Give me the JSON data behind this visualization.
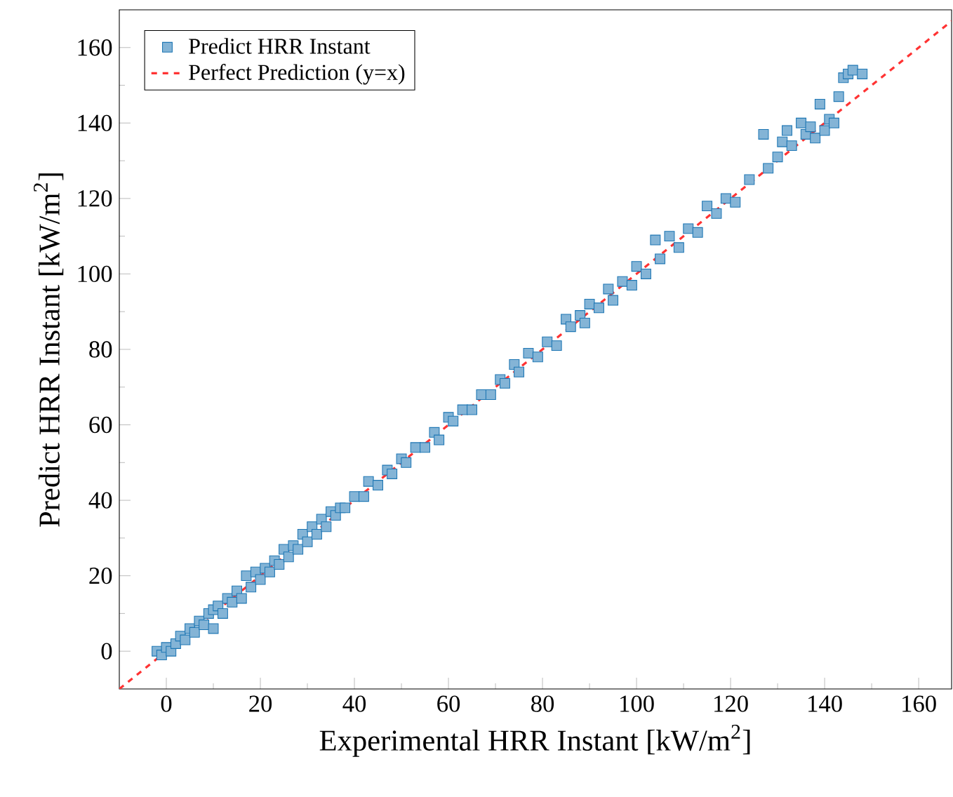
{
  "chart_data": {
    "type": "scatter",
    "xlabel": "Experimental HRR Instant [kW/m$^{2}$]",
    "ylabel": "Predict HRR Instant [kW/m$^{2}$]",
    "xlim": [
      -10,
      167
    ],
    "ylim": [
      -10,
      170
    ],
    "xticks": [
      0,
      20,
      40,
      60,
      80,
      100,
      120,
      140,
      160
    ],
    "yticks": [
      0,
      20,
      40,
      60,
      80,
      100,
      120,
      140,
      160
    ],
    "grid": false,
    "legend": "top left",
    "series": [
      {
        "name": "Predict HRR Instant",
        "color": "#1f77b4",
        "marker": "square",
        "x": [
          -2,
          -1,
          0,
          1,
          2,
          3,
          4,
          5,
          6,
          7,
          8,
          9,
          10,
          10,
          11,
          12,
          13,
          14,
          15,
          16,
          17,
          18,
          19,
          20,
          21,
          22,
          23,
          24,
          25,
          26,
          27,
          28,
          29,
          30,
          31,
          32,
          33,
          34,
          35,
          36,
          37,
          38,
          40,
          42,
          43,
          45,
          47,
          48,
          50,
          51,
          53,
          55,
          57,
          58,
          60,
          61,
          63,
          65,
          67,
          69,
          71,
          72,
          74,
          75,
          77,
          79,
          81,
          83,
          85,
          86,
          88,
          89,
          90,
          92,
          94,
          95,
          97,
          99,
          100,
          102,
          104,
          105,
          107,
          109,
          111,
          113,
          115,
          117,
          119,
          121,
          124,
          127,
          128,
          130,
          131,
          132,
          133,
          135,
          136,
          137,
          138,
          139,
          140,
          141,
          142,
          143,
          144,
          145,
          146,
          148
        ],
        "values": [
          0,
          -1,
          1,
          0,
          2,
          4,
          3,
          6,
          5,
          8,
          7,
          10,
          6,
          11,
          12,
          10,
          14,
          13,
          16,
          14,
          20,
          17,
          21,
          19,
          22,
          21,
          24,
          23,
          27,
          25,
          28,
          27,
          31,
          29,
          33,
          31,
          35,
          33,
          37,
          36,
          38,
          38,
          41,
          41,
          45,
          44,
          48,
          47,
          51,
          50,
          54,
          54,
          58,
          56,
          62,
          61,
          64,
          64,
          68,
          68,
          72,
          71,
          76,
          74,
          79,
          78,
          82,
          81,
          88,
          86,
          89,
          87,
          92,
          91,
          96,
          93,
          98,
          97,
          102,
          100,
          109,
          104,
          110,
          107,
          112,
          111,
          118,
          116,
          120,
          119,
          125,
          137,
          128,
          131,
          135,
          138,
          134,
          140,
          137,
          139,
          136,
          145,
          138,
          141,
          140,
          147,
          152,
          153,
          154,
          153
        ]
      },
      {
        "name": "Perfect Prediction (y=x)",
        "type": "line",
        "color": "#ff3333",
        "line_style": "dashed",
        "marker": "none",
        "x": [
          -10,
          167
        ],
        "values": [
          -10,
          167
        ]
      }
    ]
  }
}
